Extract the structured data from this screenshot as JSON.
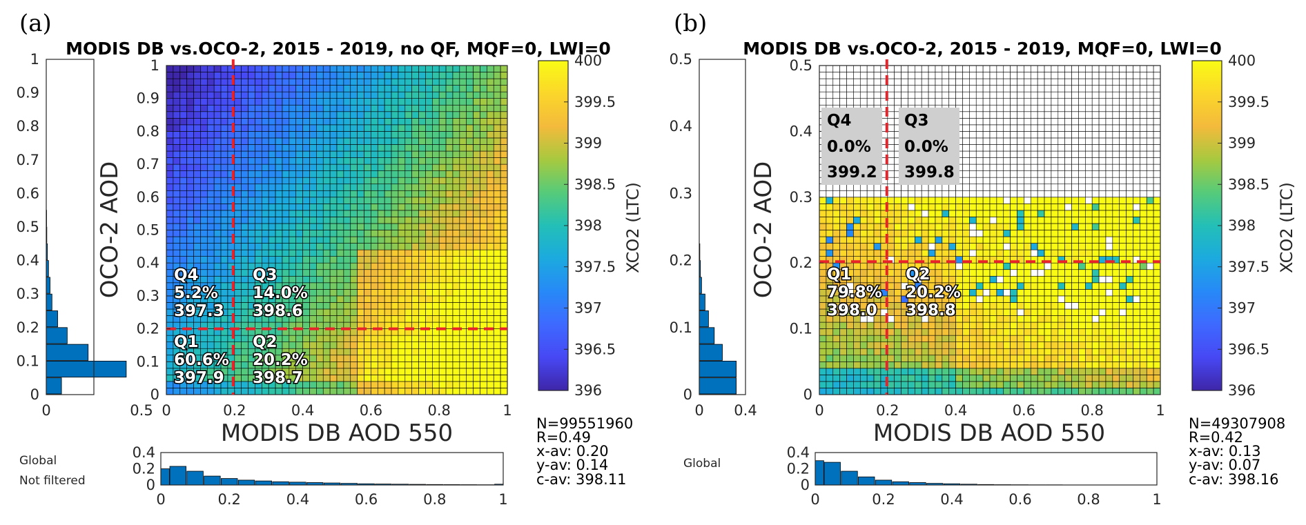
{
  "chart_data": [
    {
      "panel": "(a)",
      "type": "heatmap",
      "title": "MODIS DB vs.OCO-2, 2015 - 2019, no QF, MQF=0, LWI=0",
      "xlabel": "MODIS DB AOD 550",
      "ylabel": "OCO-2 AOD",
      "xlim": [
        0,
        1
      ],
      "ylim": [
        0,
        1
      ],
      "xticks": [
        "0",
        "0.2",
        "0.4",
        "0.6",
        "0.8",
        "1"
      ],
      "yticks": [
        "0",
        "0.1",
        "0.2",
        "0.3",
        "0.4",
        "0.5",
        "0.6",
        "0.7",
        "0.8",
        "0.9",
        "1"
      ],
      "colorbar": {
        "label": "XCO2 (LTC)",
        "min": 396,
        "max": 400,
        "ticks": [
          "396",
          "396.5",
          "397",
          "397.5",
          "398",
          "398.5",
          "399",
          "399.5",
          "400"
        ]
      },
      "grid_bins": 50,
      "data_ymax": 1.0,
      "field_model": "a",
      "thresholds": {
        "x": 0.2,
        "y": 0.2
      },
      "quadrants": [
        {
          "label": "Q4",
          "pct": "5.2%",
          "mean": "397.3"
        },
        {
          "label": "Q3",
          "pct": "14.0%",
          "mean": "398.6"
        },
        {
          "label": "Q1",
          "pct": "60.6%",
          "mean": "397.9"
        },
        {
          "label": "Q2",
          "pct": "20.2%",
          "mean": "398.7"
        }
      ],
      "stats": [
        "N=99551960",
        "R=0.49",
        "x-av: 0.20",
        "y-av: 0.14",
        "c-av: 398.11"
      ],
      "y_histogram": {
        "xticks": [
          "0",
          "0.5"
        ],
        "xmax": 0.5,
        "yticks": [
          "0",
          "0.1",
          "0.2",
          "0.3",
          "0.4",
          "0.5",
          "0.6",
          "0.7",
          "0.8",
          "0.9",
          "1"
        ],
        "bin_centers": [
          0.025,
          0.075,
          0.125,
          0.175,
          0.225,
          0.275,
          0.325,
          0.375,
          0.425,
          0.475,
          0.525
        ],
        "values": [
          0.08,
          0.42,
          0.22,
          0.11,
          0.06,
          0.03,
          0.02,
          0.012,
          0.006,
          0.003,
          0.002
        ]
      },
      "x_histogram": {
        "ylim": [
          0,
          0.4
        ],
        "yticks": [
          "0",
          "0.2",
          "0.4"
        ],
        "xticks": [
          "0",
          "0.2",
          "0.4",
          "0.6",
          "0.8",
          "1"
        ],
        "bin_centers": [
          0,
          0.05,
          0.1,
          0.15,
          0.2,
          0.25,
          0.3,
          0.35,
          0.4,
          0.45,
          0.5,
          0.55,
          0.6,
          0.65,
          0.7,
          0.75,
          0.8,
          0.85,
          0.9,
          0.95,
          1.0
        ],
        "values": [
          0.2,
          0.23,
          0.17,
          0.11,
          0.08,
          0.06,
          0.05,
          0.04,
          0.035,
          0.03,
          0.025,
          0.02,
          0.015,
          0.012,
          0.01,
          0.008,
          0.006,
          0.005,
          0.004,
          0.003,
          0.01
        ]
      },
      "side_labels": [
        "Global",
        "Not filtered"
      ]
    },
    {
      "panel": "(b)",
      "type": "heatmap",
      "title": "MODIS DB vs.OCO-2, 2015 - 2019, MQF=0, LWI=0",
      "xlabel": "MODIS DB AOD 550",
      "ylabel": "OCO-2 AOD",
      "xlim": [
        0,
        1
      ],
      "ylim": [
        0,
        0.5
      ],
      "xticks": [
        "0",
        "0.2",
        "0.4",
        "0.6",
        "0.8",
        "1"
      ],
      "yticks": [
        "0",
        "0.1",
        "0.2",
        "0.3",
        "0.4",
        "0.5"
      ],
      "colorbar": {
        "label": "XCO2 (LTC)",
        "min": 396,
        "max": 400,
        "ticks": [
          "396",
          "396.5",
          "397",
          "397.5",
          "398",
          "398.5",
          "399",
          "399.5",
          "400"
        ]
      },
      "grid_bins": 50,
      "data_ymax": 0.3,
      "field_model": "b",
      "thresholds": {
        "x": 0.2,
        "y": 0.2
      },
      "quadrants": [
        {
          "label": "Q4",
          "pct": "0.0%",
          "mean": "399.2"
        },
        {
          "label": "Q3",
          "pct": "0.0%",
          "mean": "399.8"
        },
        {
          "label": "Q1",
          "pct": "79.8%",
          "mean": "398.0"
        },
        {
          "label": "Q2",
          "pct": "20.2%",
          "mean": "398.8"
        }
      ],
      "stats": [
        "N=49307908",
        "R=0.42",
        "x-av: 0.13",
        "y-av: 0.07",
        "c-av: 398.16"
      ],
      "y_histogram": {
        "xticks": [
          "0",
          "0.4"
        ],
        "xmax": 0.4,
        "yticks": [
          "0",
          "0.1",
          "0.2",
          "0.3",
          "0.4",
          "0.5"
        ],
        "bin_centers": [
          0.0125,
          0.0375,
          0.0625,
          0.0875,
          0.1125,
          0.1375,
          0.1625,
          0.1875,
          0.2125
        ],
        "values": [
          0.32,
          0.32,
          0.2,
          0.13,
          0.08,
          0.05,
          0.02,
          0.01,
          0.005
        ]
      },
      "x_histogram": {
        "ylim": [
          0,
          0.4
        ],
        "yticks": [
          "0",
          "0.2",
          "0.4"
        ],
        "xticks": [
          "0",
          "0.2",
          "0.4",
          "0.6",
          "0.8",
          "1"
        ],
        "bin_centers": [
          0,
          0.05,
          0.1,
          0.15,
          0.2,
          0.25,
          0.3,
          0.35,
          0.4,
          0.45,
          0.5,
          0.55,
          0.6,
          0.65,
          0.7,
          0.75,
          0.8,
          0.85,
          0.9,
          0.95,
          1.0
        ],
        "values": [
          0.3,
          0.28,
          0.17,
          0.1,
          0.06,
          0.04,
          0.03,
          0.02,
          0.015,
          0.01,
          0.006,
          0.004,
          0.003,
          0.002,
          0.002,
          0.001,
          0.001,
          0.001,
          0.001,
          0.001,
          0.001
        ]
      },
      "side_labels": [
        "Global"
      ]
    }
  ]
}
